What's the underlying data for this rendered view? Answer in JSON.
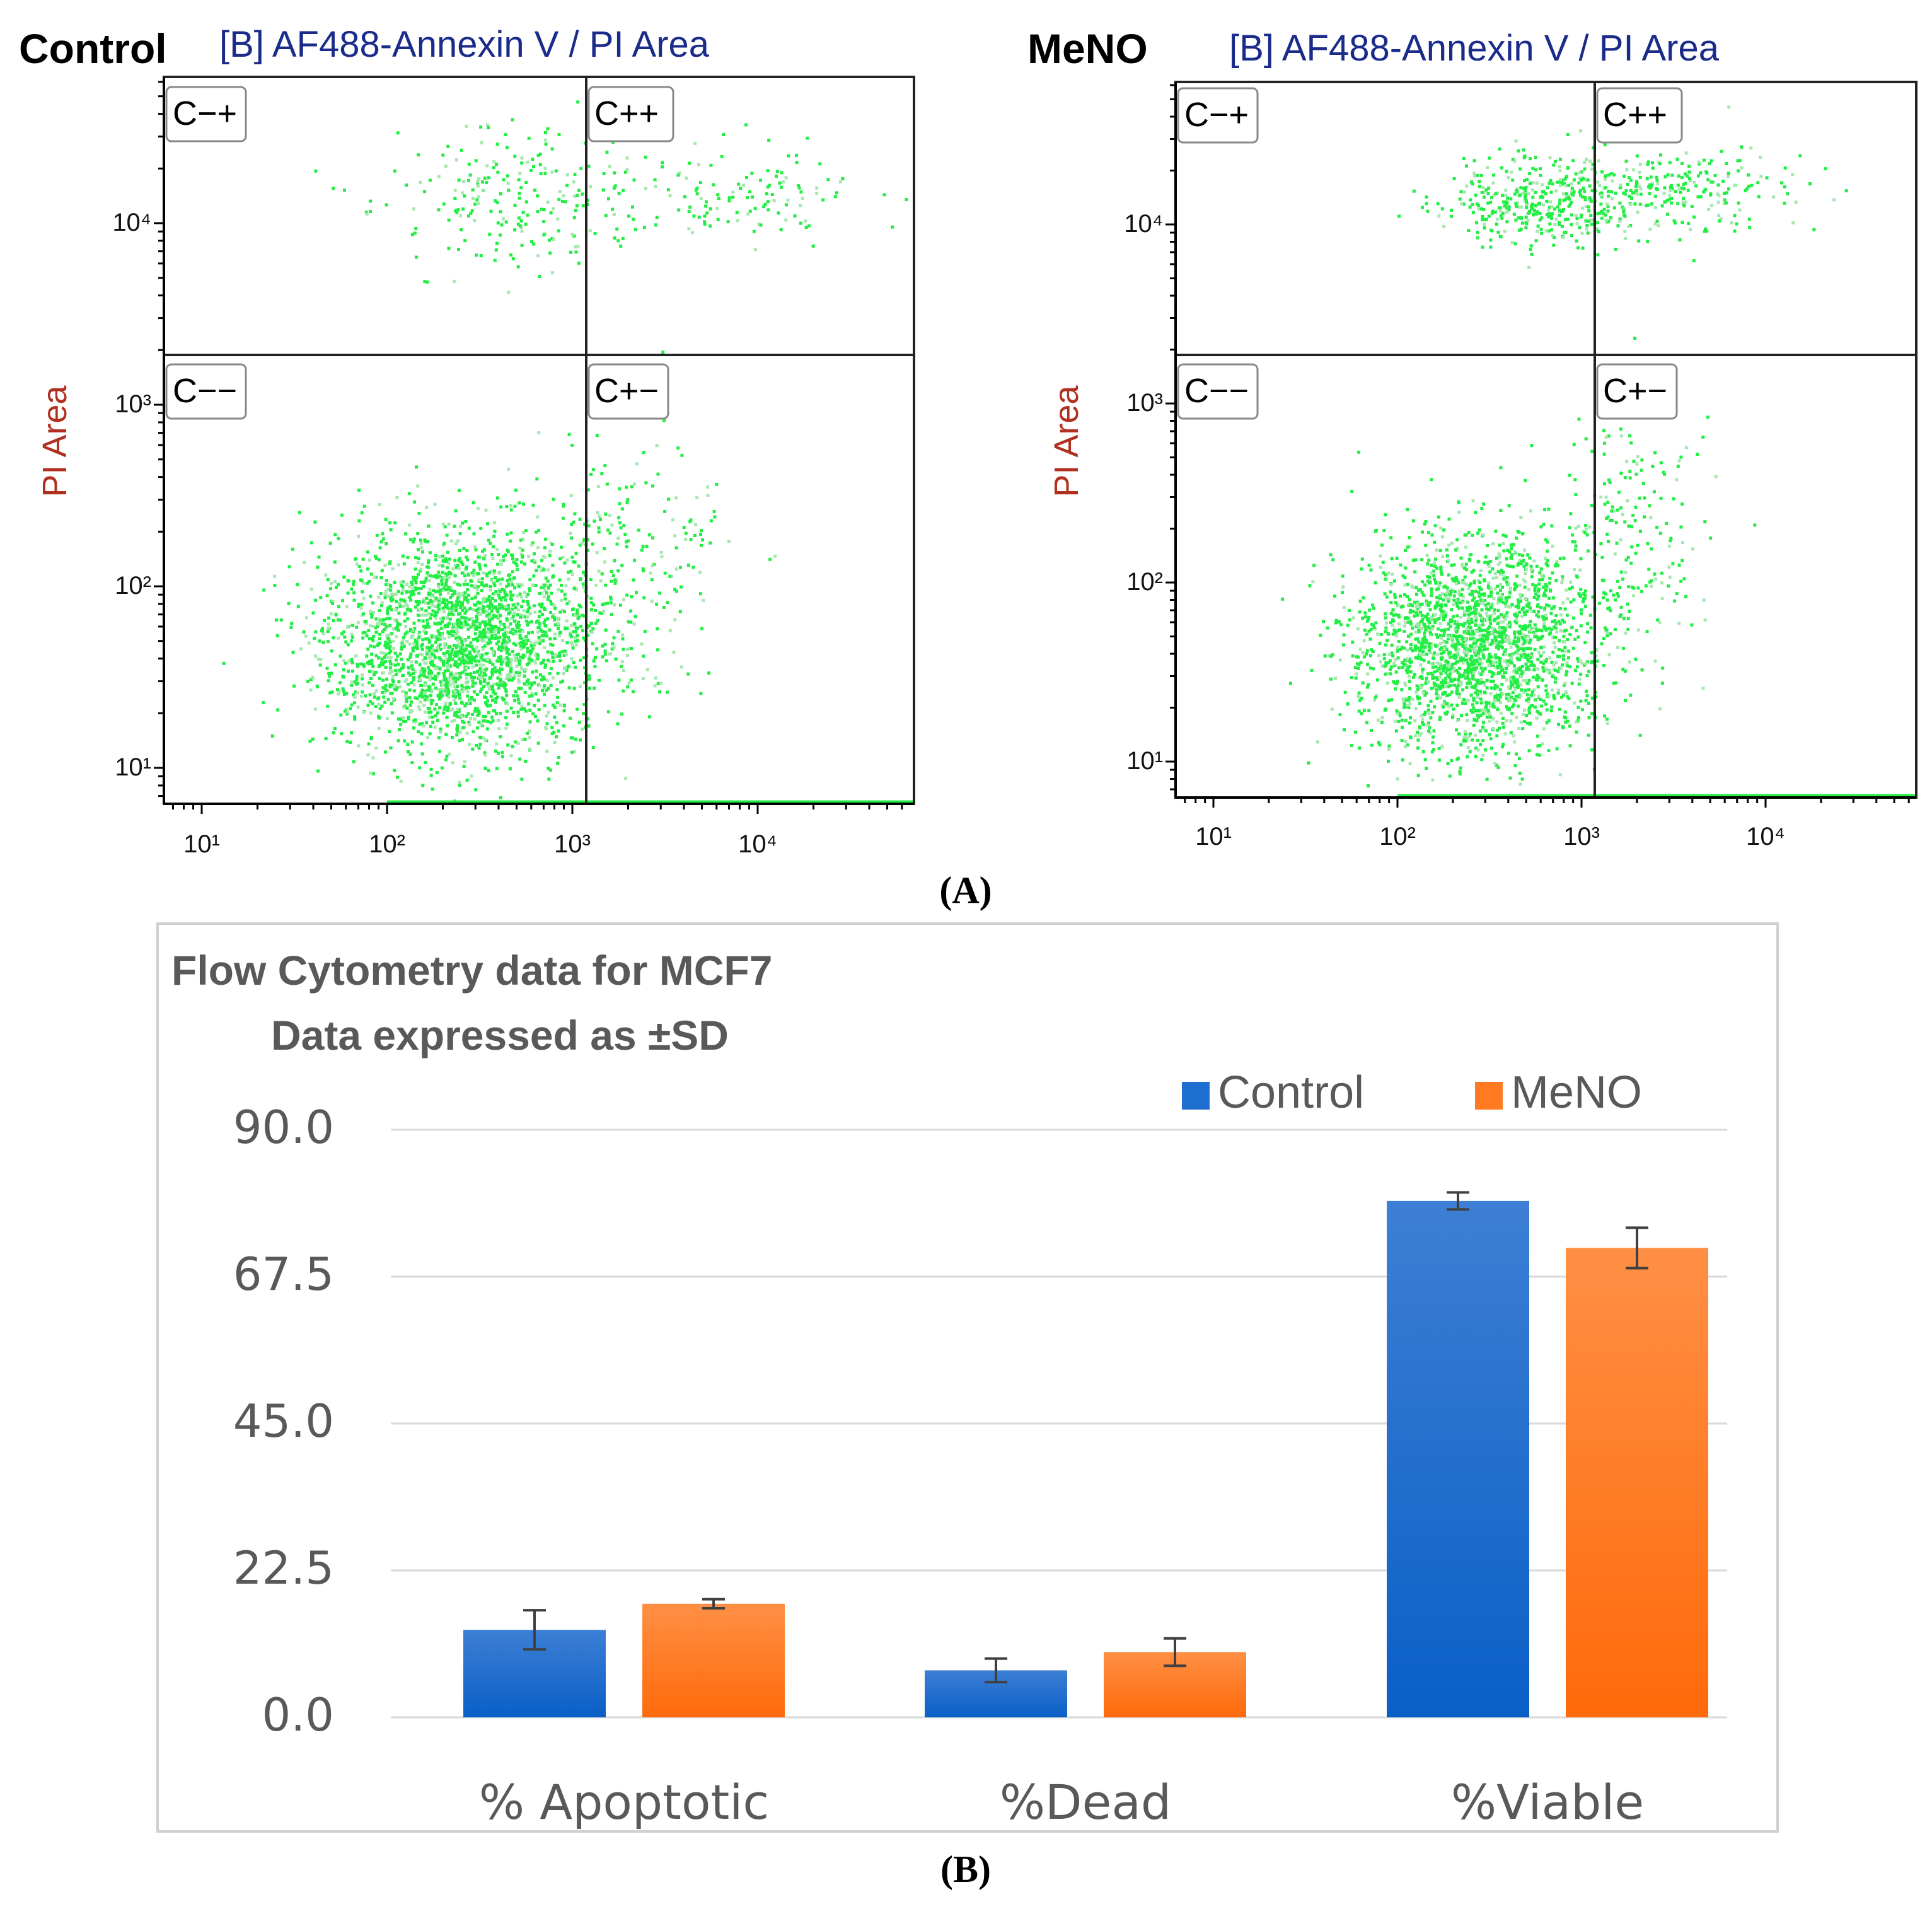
{
  "panel_a": {
    "caption": "(A)",
    "plots": [
      {
        "sample_label": "Control",
        "plot_title": "[B] AF488-Annexin V / PI Area",
        "ylabel": "PI Area",
        "x_ticks": [
          "10¹",
          "10²",
          "10³",
          "10⁴"
        ],
        "y_ticks": [
          "10¹",
          "10²",
          "10³",
          "10⁴"
        ],
        "quadrants": {
          "top_left": "C−+",
          "top_right": "C++",
          "bottom_left": "C−−",
          "bottom_right": "C+−"
        }
      },
      {
        "sample_label": "MeNO",
        "plot_title": "[B] AF488-Annexin V / PI Area",
        "ylabel": "PI Area",
        "x_ticks": [
          "10¹",
          "10²",
          "10³",
          "10⁴"
        ],
        "y_ticks": [
          "10¹",
          "10²",
          "10³",
          "10⁴"
        ],
        "quadrants": {
          "top_left": "C−+",
          "top_right": "C++",
          "bottom_left": "C−−",
          "bottom_right": "C+−"
        }
      }
    ]
  },
  "panel_b": {
    "caption": "(B)"
  },
  "colors": {
    "dots": "#22ee44",
    "control": "#1f6fd1",
    "meno": "#ff7a21",
    "gridline": "#d9d9d9",
    "frame": "#d0d0d0"
  },
  "chart_data": [
    {
      "type": "scatter",
      "title": "[B] AF488-Annexin V / PI Area",
      "sample": "Control",
      "xlabel": "",
      "ylabel": "PI Area",
      "x_scale": "log",
      "y_scale": "log",
      "xlim": [
        6,
        60000
      ],
      "ylim": [
        6,
        60000
      ],
      "gates": {
        "x": 1000,
        "y": 1500
      },
      "populations": [
        {
          "quadrant": "C−−",
          "center": [
            250,
            50
          ],
          "spread_decades": [
            0.38,
            0.3
          ],
          "points": 2600
        },
        {
          "quadrant": "C+−",
          "center": [
            2000,
            150
          ],
          "spread_decades": [
            0.25,
            0.35
          ],
          "points": 180
        },
        {
          "quadrant": "C−+",
          "center": [
            500,
            15000
          ],
          "spread_decades": [
            0.35,
            0.2
          ],
          "points": 230
        },
        {
          "quadrant": "C++",
          "center": [
            8000,
            15000
          ],
          "spread_decades": [
            0.35,
            0.15
          ],
          "points": 130
        }
      ]
    },
    {
      "type": "scatter",
      "title": "[B] AF488-Annexin V / PI Area",
      "sample": "MeNO",
      "xlabel": "",
      "ylabel": "PI Area",
      "x_scale": "log",
      "y_scale": "log",
      "xlim": [
        6,
        60000
      ],
      "ylim": [
        6,
        60000
      ],
      "gates": {
        "x": 1000,
        "y": 1500
      },
      "populations": [
        {
          "quadrant": "C−−",
          "center": [
            260,
            45
          ],
          "spread_decades": [
            0.32,
            0.3
          ],
          "points": 2300
        },
        {
          "quadrant": "C+−",
          "center": [
            1800,
            200
          ],
          "spread_decades": [
            0.2,
            0.4
          ],
          "points": 200
        },
        {
          "quadrant": "C−+",
          "center": [
            600,
            14000
          ],
          "spread_decades": [
            0.28,
            0.12
          ],
          "points": 380
        },
        {
          "quadrant": "C++",
          "center": [
            3000,
            16000
          ],
          "spread_decades": [
            0.35,
            0.12
          ],
          "points": 260
        }
      ]
    },
    {
      "type": "bar",
      "title": "Flow Cytometry data for MCF7",
      "subtitle": "Data expressed as ±SD",
      "categories": [
        "% Apoptotic",
        "%Dead",
        "%Viable"
      ],
      "series": [
        {
          "name": "Control",
          "values": [
            13.4,
            7.2,
            79.1
          ],
          "error": [
            3.0,
            1.8,
            1.3
          ]
        },
        {
          "name": "MeNO",
          "values": [
            17.4,
            10.0,
            71.9
          ],
          "error": [
            0.7,
            2.1,
            3.1
          ]
        }
      ],
      "ylim": [
        0,
        90
      ],
      "yticks": [
        "0.0",
        "22.5",
        "45.0",
        "67.5",
        "90.0"
      ],
      "grid": true,
      "legend": "top-right"
    }
  ]
}
